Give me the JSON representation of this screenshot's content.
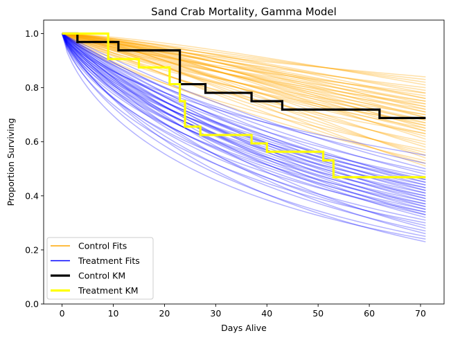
{
  "chart_data": {
    "type": "line",
    "title": "Sand Crab Mortality, Gamma Model",
    "xlabel": "Days Alive",
    "ylabel": "Proportion Surviving",
    "xlim": [
      -3.6,
      74.6
    ],
    "ylim": [
      0,
      1.05
    ],
    "xticks": [
      "0",
      "10",
      "20",
      "30",
      "40",
      "50",
      "60",
      "70"
    ],
    "yticks": [
      "0.0",
      "0.2",
      "0.4",
      "0.6",
      "0.8",
      "1.0"
    ],
    "grid": false,
    "legend_position": "lower-left",
    "legend": [
      {
        "label": "Control Fits",
        "color": "#ffa500",
        "kind": "thin"
      },
      {
        "label": "Treatment Fits",
        "color": "#0000ff",
        "kind": "thin"
      },
      {
        "label": "Control KM",
        "color": "#000000",
        "kind": "thick"
      },
      {
        "label": "Treatment KM",
        "color": "#ffff00",
        "kind": "thick"
      }
    ],
    "series": [
      {
        "name": "Control Fits",
        "type": "curve_family",
        "color": "#ffa500",
        "opacity": 0.35,
        "x_range": [
          0,
          71
        ],
        "final_values": [
          0.84,
          0.83,
          0.82,
          0.81,
          0.8,
          0.79,
          0.78,
          0.78,
          0.77,
          0.76,
          0.76,
          0.75,
          0.75,
          0.74,
          0.74,
          0.73,
          0.73,
          0.72,
          0.72,
          0.71,
          0.71,
          0.7,
          0.7,
          0.69,
          0.69,
          0.68,
          0.68,
          0.67,
          0.67,
          0.66,
          0.66,
          0.65,
          0.65,
          0.64,
          0.64,
          0.63,
          0.63,
          0.62,
          0.61,
          0.6,
          0.59,
          0.58,
          0.57,
          0.56,
          0.55,
          0.54,
          0.53,
          0.52,
          0.51
        ]
      },
      {
        "name": "Treatment Fits",
        "type": "curve_family",
        "color": "#0000ff",
        "opacity": 0.3,
        "x_range": [
          0,
          71
        ],
        "final_values": [
          0.55,
          0.52,
          0.5,
          0.49,
          0.48,
          0.47,
          0.46,
          0.46,
          0.45,
          0.45,
          0.44,
          0.44,
          0.43,
          0.43,
          0.42,
          0.42,
          0.41,
          0.41,
          0.4,
          0.4,
          0.39,
          0.39,
          0.38,
          0.38,
          0.37,
          0.37,
          0.36,
          0.36,
          0.35,
          0.35,
          0.34,
          0.34,
          0.33,
          0.33,
          0.32,
          0.31,
          0.3,
          0.29,
          0.28,
          0.27,
          0.26,
          0.25,
          0.24,
          0.23
        ]
      },
      {
        "name": "Control KM",
        "type": "step",
        "color": "#000000",
        "points": [
          [
            0,
            1.0
          ],
          [
            3,
            0.969
          ],
          [
            9,
            0.969
          ],
          [
            11,
            0.938
          ],
          [
            15,
            0.938
          ],
          [
            21,
            0.938
          ],
          [
            23,
            0.813
          ],
          [
            28,
            0.781
          ],
          [
            37,
            0.75
          ],
          [
            43,
            0.719
          ],
          [
            62,
            0.688
          ],
          [
            71,
            0.688
          ]
        ],
        "steps": [
          [
            3,
            0.969
          ],
          [
            9,
            0.969
          ],
          [
            11,
            0.938
          ],
          [
            23,
            0.813
          ],
          [
            28,
            0.781
          ],
          [
            37,
            0.75
          ],
          [
            43,
            0.719
          ],
          [
            62,
            0.688
          ]
        ]
      },
      {
        "name": "Treatment KM",
        "type": "step",
        "color": "#ffff00",
        "steps": [
          [
            9,
            0.906
          ],
          [
            15,
            0.875
          ],
          [
            21,
            0.813
          ],
          [
            23,
            0.75
          ],
          [
            24,
            0.656
          ],
          [
            27,
            0.625
          ],
          [
            37,
            0.594
          ],
          [
            40,
            0.563
          ],
          [
            51,
            0.531
          ],
          [
            53,
            0.469
          ]
        ]
      }
    ]
  }
}
